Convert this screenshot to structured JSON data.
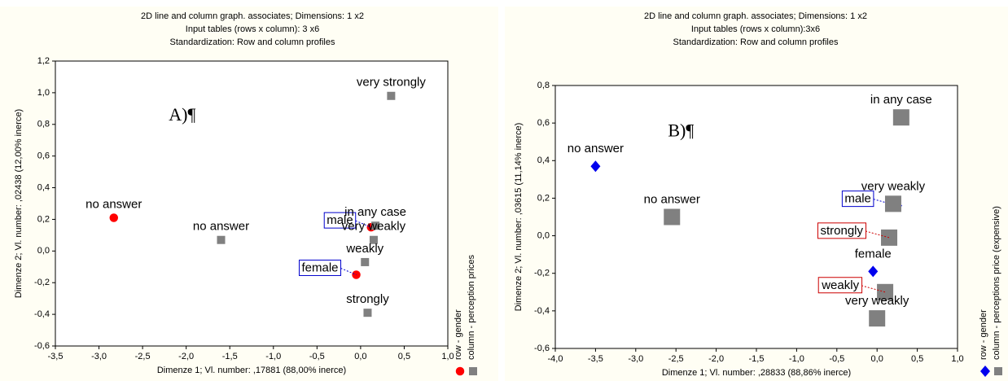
{
  "chart_data": [
    {
      "type": "scatter",
      "title": [
        "2D line and column graph. associates; Dimensions: 1 x2",
        "Input tables (rows x column): 3 x6",
        "Standardization: Row and column profiles"
      ],
      "annotation": "A)¶",
      "x_label": "Dimenze 1; Vl. number: ,17881 (88,00% inerce)",
      "y_label": "Dimenze 2; Vl. number: ,02438 (12,00% inerce)",
      "xlim": [
        -3.5,
        1.0
      ],
      "ylim": [
        -0.6,
        1.2
      ],
      "xticks": [
        {
          "value": -3.5,
          "label": "-3,5"
        },
        {
          "value": -3.0,
          "label": "-3,0"
        },
        {
          "value": -2.5,
          "label": "-2,5"
        },
        {
          "value": -2.0,
          "label": "-2,0"
        },
        {
          "value": -1.5,
          "label": "-1,5"
        },
        {
          "value": -1.0,
          "label": "-1,0"
        },
        {
          "value": -0.5,
          "label": "-0,5"
        },
        {
          "value": 0,
          "label": "0,0"
        },
        {
          "value": 0.5,
          "label": "0,5"
        },
        {
          "value": 1.0,
          "label": "1,0"
        }
      ],
      "yticks": [
        {
          "value": -0.6,
          "label": "-0,6"
        },
        {
          "value": -0.4,
          "label": "-0,4"
        },
        {
          "value": -0.2,
          "label": "-0,2"
        },
        {
          "value": 0,
          "label": "0,0"
        },
        {
          "value": 0.2,
          "label": "0,2"
        },
        {
          "value": 0.4,
          "label": "0,4"
        },
        {
          "value": 0.6,
          "label": "0,6"
        },
        {
          "value": 0.8,
          "label": "0,8"
        },
        {
          "value": 1.0,
          "label": "1,0"
        },
        {
          "value": 1.2,
          "label": "1,2"
        }
      ],
      "series": [
        {
          "name": "row - gender",
          "color": "#ff0000",
          "marker": "circle",
          "box_color": "#0000cc",
          "labels": [
            "no answer",
            "male",
            "female"
          ],
          "boxed": [
            false,
            true,
            true
          ],
          "x": [
            -2.83,
            0.12,
            -0.05
          ],
          "y": [
            0.21,
            0.15,
            -0.15
          ]
        },
        {
          "name": "column - perception prices",
          "color": "#808080",
          "marker": "square",
          "box_color": "#cc0000",
          "labels": [
            "very strongly",
            "no answer",
            "in any case",
            "very weakly",
            "weakly",
            "strongly"
          ],
          "boxed": [
            false,
            false,
            false,
            false,
            false,
            false
          ],
          "x": [
            0.35,
            -1.6,
            0.17,
            0.15,
            0.05,
            0.08
          ],
          "y": [
            0.98,
            0.07,
            0.16,
            0.07,
            -0.07,
            -0.39
          ]
        }
      ]
    },
    {
      "type": "scatter",
      "title": [
        "2D line and column graph. associates; Dimensions: 1 x2",
        "Input tables (rows x column):3x6",
        "Standardization: Row and column profiles"
      ],
      "annotation": "B)¶",
      "x_label": "Dimenze 1; Vl. number: ,28833 (88,86% inerce)",
      "y_label": "Dimenze 2; Vl. number: ,03615 (11,14% inerce)",
      "xlim": [
        -4.0,
        1.0
      ],
      "ylim": [
        -0.6,
        0.8
      ],
      "xticks": [
        {
          "value": -4.0,
          "label": "-4,0"
        },
        {
          "value": -3.5,
          "label": "-3,5"
        },
        {
          "value": -3.0,
          "label": "-3,0"
        },
        {
          "value": -2.5,
          "label": "-2,5"
        },
        {
          "value": -2.0,
          "label": "-2,0"
        },
        {
          "value": -1.5,
          "label": "-1,5"
        },
        {
          "value": -1.0,
          "label": "-1,0"
        },
        {
          "value": -0.5,
          "label": "-0,5"
        },
        {
          "value": 0,
          "label": "0,0"
        },
        {
          "value": 0.5,
          "label": "0,5"
        },
        {
          "value": 1.0,
          "label": "1,0"
        }
      ],
      "yticks": [
        {
          "value": -0.6,
          "label": "-0,6"
        },
        {
          "value": -0.4,
          "label": "-0,4"
        },
        {
          "value": -0.2,
          "label": "-0,2"
        },
        {
          "value": 0,
          "label": "0,0"
        },
        {
          "value": 0.2,
          "label": "0,2"
        },
        {
          "value": 0.4,
          "label": "0,4"
        },
        {
          "value": 0.6,
          "label": "0,6"
        },
        {
          "value": 0.8,
          "label": "0,8"
        }
      ],
      "series": [
        {
          "name": "row - gender",
          "color": "#0000ee",
          "marker": "diamond",
          "box_color": "#0000cc",
          "labels": [
            "no answer",
            "male",
            "female"
          ],
          "boxed": [
            false,
            true,
            false
          ],
          "x": [
            -3.5,
            0.25,
            -0.05
          ],
          "y": [
            0.37,
            0.16,
            -0.19
          ]
        },
        {
          "name": "column - perceptions price (expensive)",
          "color": "#808080",
          "marker": "square",
          "box_color": "#cc0000",
          "labels": [
            "in any case",
            "no answer",
            "very weakly",
            "strongly",
            "weakly",
            "very weakly"
          ],
          "boxed": [
            false,
            false,
            false,
            true,
            true,
            false
          ],
          "x": [
            0.3,
            -2.55,
            0.2,
            0.15,
            0.1,
            0.0
          ],
          "y": [
            0.63,
            0.1,
            0.17,
            -0.01,
            -0.3,
            -0.44
          ]
        }
      ]
    }
  ]
}
